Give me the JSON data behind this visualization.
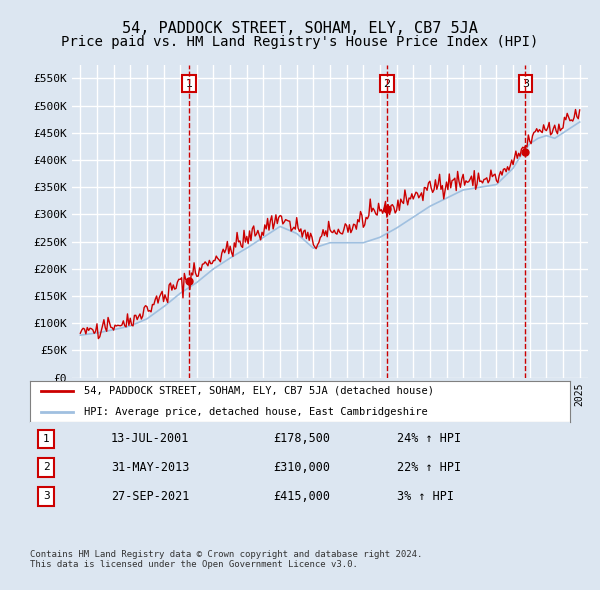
{
  "title": "54, PADDOCK STREET, SOHAM, ELY, CB7 5JA",
  "subtitle": "Price paid vs. HM Land Registry's House Price Index (HPI)",
  "ylabel": "",
  "ylim": [
    0,
    575000
  ],
  "yticks": [
    0,
    50000,
    100000,
    150000,
    200000,
    250000,
    300000,
    350000,
    400000,
    450000,
    500000,
    550000
  ],
  "ytick_labels": [
    "£0",
    "£50K",
    "£100K",
    "£150K",
    "£200K",
    "£250K",
    "£300K",
    "£350K",
    "£400K",
    "£450K",
    "£500K",
    "£550K"
  ],
  "bg_color": "#dce6f1",
  "plot_bg_color": "#dce6f1",
  "grid_color": "#ffffff",
  "price_paid_color": "#cc0000",
  "hpi_color": "#a0c0e0",
  "sale_marker_color": "#cc0000",
  "vline_color": "#cc0000",
  "transactions": [
    {
      "num": 1,
      "date_num": 2001.54,
      "price": 178500,
      "label": "1",
      "date_str": "13-JUL-2001",
      "pct": "24%"
    },
    {
      "num": 2,
      "date_num": 2013.41,
      "price": 310000,
      "label": "2",
      "date_str": "31-MAY-2013",
      "pct": "22%"
    },
    {
      "num": 3,
      "date_num": 2021.74,
      "price": 415000,
      "label": "3",
      "date_str": "27-SEP-2021",
      "pct": "3%"
    }
  ],
  "legend_label_red": "54, PADDOCK STREET, SOHAM, ELY, CB7 5JA (detached house)",
  "legend_label_blue": "HPI: Average price, detached house, East Cambridgeshire",
  "footer": "Contains HM Land Registry data © Crown copyright and database right 2024.\nThis data is licensed under the Open Government Licence v3.0.",
  "box_color": "#cc0000",
  "title_fontsize": 11,
  "subtitle_fontsize": 10
}
